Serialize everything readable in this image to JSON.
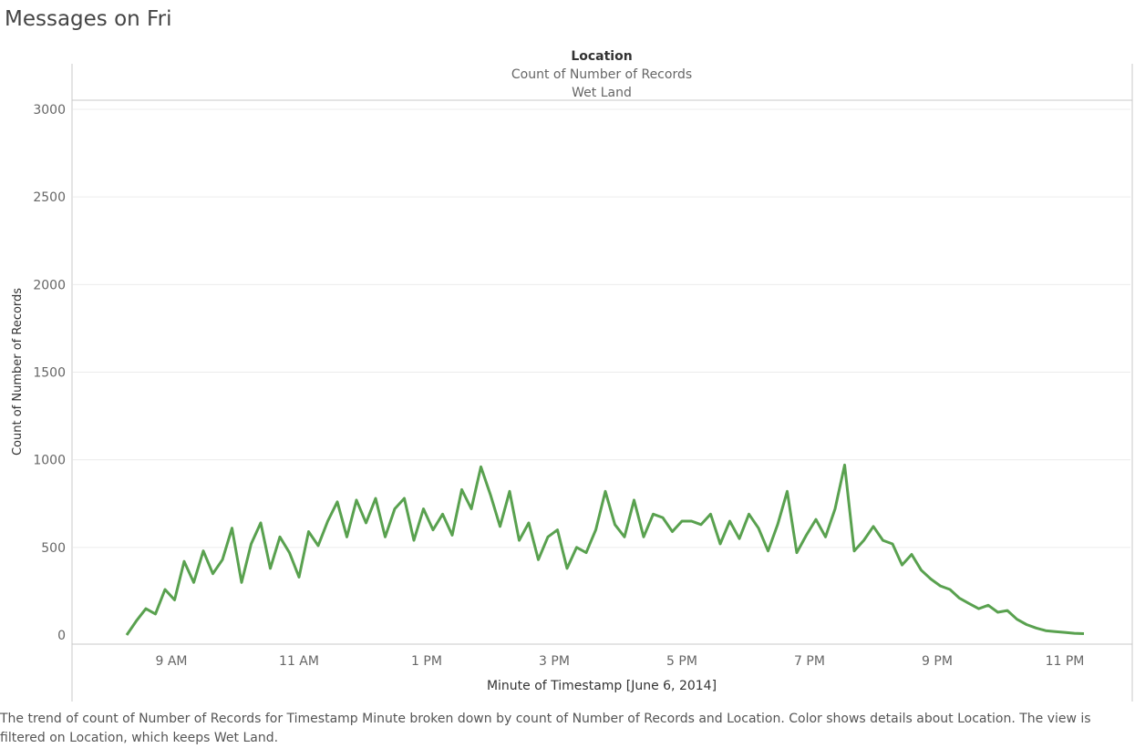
{
  "title": "Messages on Fri",
  "caption": "The trend of count of Number of Records for Timestamp Minute broken down by count of Number of Records and Location.  Color shows details about Location. The view is filtered on Location, which keeps Wet Land.",
  "colors": {
    "series": "#59a14f",
    "grid": "#ececec",
    "axis": "#c8c8c8"
  },
  "chart_data": {
    "type": "line",
    "header": {
      "pane_title": "Location",
      "measure_label": "Count of Number of Records",
      "column_value": "Wet Land"
    },
    "xlabel": "Minute of Timestamp [June 6, 2014]",
    "ylabel": "Count of Number of Records",
    "ylim": [
      -50,
      3050
    ],
    "yticks": [
      0,
      500,
      1000,
      1500,
      2000,
      2500,
      3000
    ],
    "xticks": [
      "9 AM",
      "11 AM",
      "1 PM",
      "3 PM",
      "5 PM",
      "7 PM",
      "9 PM",
      "11 PM"
    ],
    "x_range_hours": [
      8.3,
      23.3
    ],
    "grid": true,
    "series": [
      {
        "name": "Wet Land",
        "color": "#59a14f",
        "x_hours": [
          8.3,
          8.45,
          8.6,
          8.75,
          8.9,
          9.05,
          9.2,
          9.35,
          9.5,
          9.65,
          9.8,
          9.95,
          10.1,
          10.25,
          10.4,
          10.55,
          10.7,
          10.85,
          11.0,
          11.15,
          11.3,
          11.45,
          11.6,
          11.75,
          11.9,
          12.05,
          12.2,
          12.35,
          12.5,
          12.65,
          12.8,
          12.95,
          13.1,
          13.25,
          13.4,
          13.55,
          13.7,
          13.85,
          14.0,
          14.15,
          14.3,
          14.45,
          14.6,
          14.75,
          14.9,
          15.05,
          15.2,
          15.35,
          15.5,
          15.65,
          15.8,
          15.95,
          16.1,
          16.25,
          16.4,
          16.55,
          16.7,
          16.85,
          17.0,
          17.15,
          17.3,
          17.45,
          17.6,
          17.75,
          17.9,
          18.05,
          18.2,
          18.35,
          18.5,
          18.65,
          18.8,
          18.95,
          19.1,
          19.25,
          19.4,
          19.55,
          19.7,
          19.85,
          20.0,
          20.15,
          20.3,
          20.45,
          20.6,
          20.75,
          20.9,
          21.05,
          21.2,
          21.35,
          21.5,
          21.65,
          21.8,
          21.95,
          22.1,
          22.25,
          22.4,
          22.55,
          22.7,
          22.85,
          23.0,
          23.15,
          23.3
        ],
        "values": [
          0,
          80,
          150,
          120,
          260,
          200,
          420,
          300,
          480,
          350,
          430,
          610,
          300,
          520,
          640,
          380,
          560,
          470,
          330,
          590,
          510,
          650,
          760,
          560,
          770,
          640,
          780,
          560,
          720,
          780,
          540,
          720,
          600,
          690,
          570,
          830,
          720,
          960,
          800,
          620,
          820,
          540,
          640,
          430,
          560,
          600,
          380,
          500,
          470,
          600,
          820,
          630,
          560,
          770,
          560,
          690,
          670,
          590,
          650,
          650,
          630,
          690,
          520,
          650,
          550,
          690,
          610,
          480,
          630,
          820,
          470,
          570,
          660,
          560,
          720,
          970,
          480,
          540,
          620,
          540,
          520,
          400,
          460,
          370,
          320,
          280,
          260,
          210,
          180,
          150,
          170,
          130,
          140,
          90,
          60,
          40,
          25,
          20,
          15,
          10,
          8
        ]
      }
    ]
  }
}
